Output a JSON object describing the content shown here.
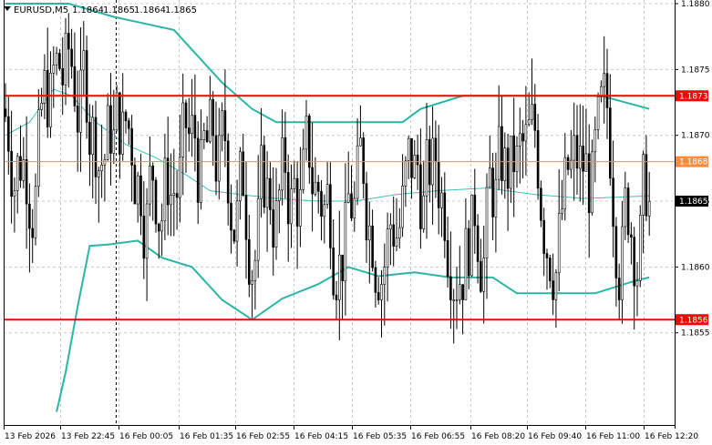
{
  "chart_data": {
    "type": "candlestick",
    "symbol_info": "EURUSD,M5",
    "ohlc_readout": [
      "1.1864",
      "1.1865",
      "1.1864",
      "1.1865"
    ],
    "ylim": [
      1.1848,
      1.188
    ],
    "y_ticks": [
      1.188,
      1.1875,
      1.187,
      1.1865,
      1.186,
      1.1855
    ],
    "x_ticks": [
      "13 Feb 2026",
      "13 Feb 22:45",
      "16 Feb 00:05",
      "16 Feb 01:35",
      "16 Feb 02:55",
      "16 Feb 04:15",
      "16 Feb 05:35",
      "16 Feb 06:55",
      "16 Feb 08:20",
      "16 Feb 09:40",
      "16 Feb 11:00",
      "16 Feb 12:20"
    ],
    "grid": true,
    "levels": [
      {
        "value": 1.1873,
        "label": "1.1873",
        "color": "#ff0000",
        "kind": "resistance"
      },
      {
        "value": 1.1868,
        "label": "1.1868",
        "color": "#ff8c3a",
        "kind": "pivot"
      },
      {
        "value": 1.1856,
        "label": "1.1856",
        "color": "#ff0000",
        "kind": "support"
      }
    ],
    "current_price": {
      "value": 1.1865,
      "label": "1.1865"
    },
    "colors": {
      "candles": "#000000",
      "bands": "#2ab5a5",
      "middle": "#3cc0b4",
      "grid": "#c8c8c8",
      "axis": "#000000"
    },
    "bands": {
      "upper": [
        [
          0,
          1.188
        ],
        [
          21,
          1.188
        ],
        [
          36,
          1.1879
        ],
        [
          56,
          1.1878
        ],
        [
          72,
          1.1874
        ],
        [
          82,
          1.1872
        ],
        [
          90,
          1.1871
        ],
        [
          104,
          1.1871
        ],
        [
          118,
          1.1871
        ],
        [
          132,
          1.1871
        ],
        [
          138,
          1.1872
        ],
        [
          152,
          1.1873
        ],
        [
          168,
          1.1873
        ],
        [
          186,
          1.1873
        ],
        [
          198,
          1.1873
        ],
        [
          214,
          1.1872
        ]
      ],
      "middle": [
        [
          0,
          1.187
        ],
        [
          8,
          1.1871
        ],
        [
          16,
          1.18735
        ],
        [
          22,
          1.1873
        ],
        [
          30,
          1.1871
        ],
        [
          40,
          1.18693
        ],
        [
          50,
          1.18683
        ],
        [
          60,
          1.1867
        ],
        [
          68,
          1.18658
        ],
        [
          78,
          1.18655
        ],
        [
          90,
          1.18652
        ],
        [
          104,
          1.1865
        ],
        [
          116,
          1.1865
        ],
        [
          130,
          1.18655
        ],
        [
          144,
          1.18658
        ],
        [
          160,
          1.1866
        ],
        [
          176,
          1.18655
        ],
        [
          192,
          1.18652
        ],
        [
          214,
          1.18654
        ]
      ],
      "lower": [
        [
          17,
          1.1849
        ],
        [
          20,
          1.1852
        ],
        [
          24,
          1.1857
        ],
        [
          28,
          1.18616
        ],
        [
          34,
          1.18617
        ],
        [
          44,
          1.1862
        ],
        [
          52,
          1.18607
        ],
        [
          62,
          1.186
        ],
        [
          72,
          1.18575
        ],
        [
          82,
          1.1856
        ],
        [
          92,
          1.18576
        ],
        [
          104,
          1.18587
        ],
        [
          114,
          1.186
        ],
        [
          124,
          1.18593
        ],
        [
          136,
          1.18596
        ],
        [
          148,
          1.18592
        ],
        [
          162,
          1.18592
        ],
        [
          170,
          1.1858
        ],
        [
          182,
          1.1858
        ],
        [
          196,
          1.1858
        ],
        [
          210,
          1.1859
        ],
        [
          214,
          1.18592
        ]
      ]
    }
  }
}
